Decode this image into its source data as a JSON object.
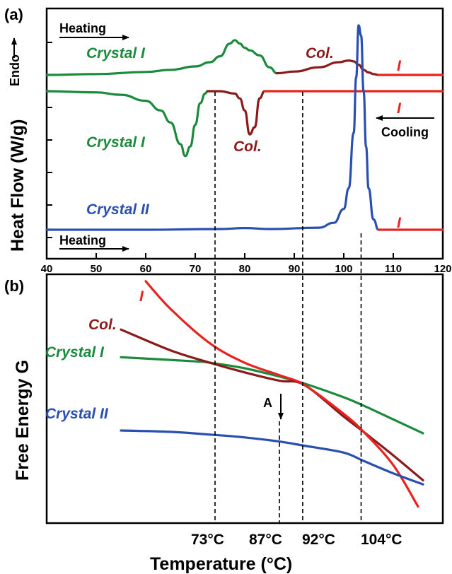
{
  "colors": {
    "crystal_i": "#1a8a3c",
    "col": "#8b1a1a",
    "isotropic": "#e8231f",
    "crystal_ii": "#2a4fb0",
    "axis": "#000000"
  },
  "chart_data": [
    {
      "panel": "(a)",
      "type": "line",
      "xlabel": "",
      "ylabel": "Heat Flow (W/g)",
      "y_arrow_label": "Endo",
      "xlim": [
        40,
        120
      ],
      "x_ticks": [
        40,
        50,
        60,
        70,
        80,
        90,
        100,
        110,
        120
      ],
      "y_ticks_labeled": false,
      "grid": false,
      "annotations": [
        "Heating",
        "Cooling",
        "Heating"
      ],
      "series": [
        {
          "name": "Crystal I",
          "trace": "top heating",
          "x": [
            40,
            50,
            60,
            65,
            70,
            73,
            75,
            77,
            78,
            79,
            80,
            81,
            83,
            85,
            86.5
          ],
          "y": [
            0.0,
            0.1,
            0.35,
            0.6,
            1.0,
            1.5,
            2.2,
            3.7,
            4.1,
            3.7,
            3.2,
            2.9,
            2.3,
            0.9,
            0.2
          ]
        },
        {
          "name": "Col.",
          "trace": "top heating",
          "x": [
            86.5,
            90,
            95,
            99,
            101,
            102,
            103,
            104,
            105,
            106,
            107
          ],
          "y": [
            0.2,
            0.4,
            0.9,
            1.5,
            1.7,
            1.6,
            1.2,
            0.6,
            0.3,
            0.1,
            0.0
          ]
        },
        {
          "name": "I",
          "trace": "top heating",
          "x": [
            107,
            110,
            120
          ],
          "y": [
            0.0,
            0.0,
            0.0
          ]
        },
        {
          "name": "Crystal I",
          "trace": "middle cooling",
          "x": [
            40,
            50,
            55,
            60,
            63,
            65,
            67,
            68,
            69,
            70,
            71,
            72,
            72.5
          ],
          "y": [
            0.0,
            -0.1,
            -0.3,
            -0.8,
            -1.6,
            -2.6,
            -4.4,
            -5.4,
            -4.6,
            -2.8,
            -1.0,
            -0.2,
            0.0
          ]
        },
        {
          "name": "Col.",
          "trace": "middle cooling",
          "x": [
            72.5,
            75,
            78,
            79,
            80,
            81,
            82,
            83,
            84
          ],
          "y": [
            0.0,
            0.0,
            -0.2,
            -0.6,
            -1.6,
            -3.6,
            -3.0,
            -0.6,
            0.0
          ]
        },
        {
          "name": "I",
          "trace": "middle cooling",
          "x": [
            84,
            90,
            100,
            110,
            120
          ],
          "y": [
            0.0,
            0.0,
            0.0,
            0.0,
            0.0
          ]
        },
        {
          "name": "Crystal II",
          "trace": "bottom heating",
          "x": [
            40,
            60,
            75,
            80,
            85,
            95,
            98,
            100,
            101,
            102,
            102.5,
            103,
            103.5,
            104,
            104.5,
            105,
            106,
            107
          ],
          "y": [
            0.0,
            0.0,
            0.1,
            0.25,
            0.1,
            0.3,
            1.0,
            3.0,
            6.0,
            14.0,
            22.0,
            29.5,
            28.0,
            20.0,
            12.0,
            6.0,
            1.5,
            0.0
          ]
        },
        {
          "name": "I",
          "trace": "bottom heating",
          "x": [
            107,
            110,
            120
          ],
          "y": [
            0.0,
            0.0,
            0.0
          ]
        }
      ]
    },
    {
      "panel": "(b)",
      "type": "line",
      "xlabel": "Temperature (°C)",
      "ylabel": "Free Energy G",
      "x_ticks_labeled": [
        "73°C",
        "87°C",
        "92°C",
        "104°C"
      ],
      "transition_temps": [
        73,
        87,
        92,
        104
      ],
      "annotation": "A",
      "grid": false,
      "series": [
        {
          "name": "Crystal I",
          "x": [
            55,
            70,
            73,
            80,
            87,
            92,
            100,
            104,
            110,
            116
          ],
          "y": [
            1.0,
            0.97,
            0.96,
            0.92,
            0.86,
            0.81,
            0.71,
            0.65,
            0.55,
            0.45
          ]
        },
        {
          "name": "Col.",
          "x": [
            55,
            65,
            73,
            80,
            87,
            92,
            100,
            104,
            110,
            116
          ],
          "y": [
            1.2,
            1.05,
            0.96,
            0.89,
            0.83,
            0.8,
            0.57,
            0.46,
            0.29,
            0.11
          ]
        },
        {
          "name": "I",
          "x": [
            60,
            65,
            73,
            80,
            87,
            92,
            100,
            104,
            110,
            115
          ],
          "y": [
            1.55,
            1.35,
            1.1,
            0.96,
            0.87,
            0.8,
            0.59,
            0.46,
            0.22,
            -0.08
          ]
        },
        {
          "name": "Crystal II",
          "x": [
            55,
            65,
            73,
            80,
            87,
            92,
            100,
            104,
            110,
            116
          ],
          "y": [
            0.47,
            0.46,
            0.44,
            0.42,
            0.39,
            0.36,
            0.31,
            0.25,
            0.16,
            0.08
          ]
        }
      ]
    }
  ]
}
